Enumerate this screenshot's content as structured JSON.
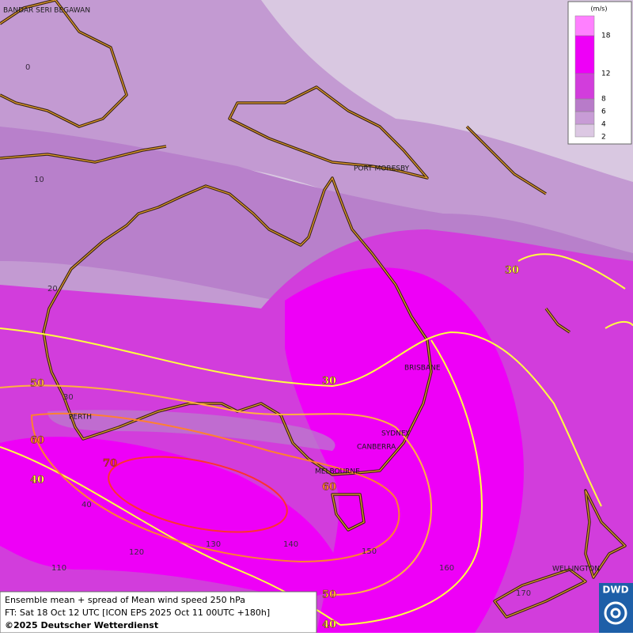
{
  "map": {
    "cities": [
      "BANDAR SERI BEGAWAN",
      "PORT MORESBY",
      "BRISBANE",
      "PERTH",
      "SYDNEY",
      "CANBERRA",
      "MELBOURNE",
      "WELLINGTON"
    ],
    "lat_labels": [
      "0",
      "10",
      "20",
      "30",
      "40"
    ],
    "lon_labels": [
      "110",
      "120",
      "130",
      "140",
      "150",
      "160",
      "170"
    ],
    "contour_labels": [
      "30",
      "30",
      "50",
      "60",
      "70",
      "40",
      "60",
      "50",
      "40"
    ]
  },
  "legend": {
    "unit": "(m/s)",
    "levels": [
      2,
      4,
      6,
      8,
      12,
      18
    ],
    "colors": [
      "#dcc8e3",
      "#c89cd6",
      "#b87bc9",
      "#d23ddc",
      "#ee00f7",
      "#ff80ff"
    ]
  },
  "footer": {
    "line1": "Ensemble mean + spread of Mean wind speed 250 hPa",
    "line2": "FT: Sat 18 Oct 12 UTC [ICON EPS 2025 Oct 11 00UTC +180h]",
    "line3": "©2025 Deutscher Wetterdienst"
  },
  "logo": "DWD"
}
